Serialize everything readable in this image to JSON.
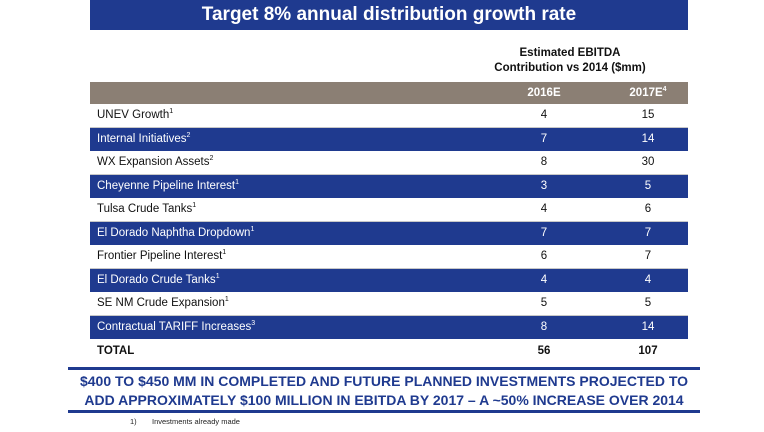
{
  "title": "Target 8% annual distribution growth rate",
  "column_caption_line1": "Estimated EBITDA",
  "column_caption_line2": "Contribution vs 2014 ($mm)",
  "table": {
    "headers": {
      "name": "",
      "col1": "2016E",
      "col2": "2017E",
      "col2_sup": "4"
    },
    "rows": [
      {
        "name": "UNEV Growth",
        "sup": "1",
        "v1": "4",
        "v2": "15"
      },
      {
        "name": "Internal Initiatives",
        "sup": "2",
        "v1": "7",
        "v2": "14"
      },
      {
        "name": "WX Expansion Assets",
        "sup": "2",
        "v1": "8",
        "v2": "30"
      },
      {
        "name": "Cheyenne Pipeline Interest",
        "sup": "1",
        "v1": "3",
        "v2": "5"
      },
      {
        "name": "Tulsa Crude Tanks",
        "sup": "1",
        "v1": "4",
        "v2": "6"
      },
      {
        "name": "El Dorado Naphtha Dropdown",
        "sup": "1",
        "v1": "7",
        "v2": "7"
      },
      {
        "name": "Frontier Pipeline Interest",
        "sup": "1",
        "v1": "6",
        "v2": "7"
      },
      {
        "name": "El Dorado Crude Tanks",
        "sup": "1",
        "v1": "4",
        "v2": "4"
      },
      {
        "name": "SE NM Crude Expansion",
        "sup": "1",
        "v1": "5",
        "v2": "5"
      },
      {
        "name": "Contractual TARIFF Increases",
        "sup": "3",
        "v1": "8",
        "v2": "14"
      }
    ],
    "total": {
      "name": "TOTAL",
      "v1": "56",
      "v2": "107"
    }
  },
  "bottom_line1": "$400 TO $450 MM IN COMPLETED AND FUTURE PLANNED INVESTMENTS PROJECTED TO",
  "bottom_line2": "ADD APPROXIMATELY $100 MILLION IN EBITDA BY 2017 – A ~50% INCREASE OVER 2014",
  "footnotes": [
    {
      "num": "1)",
      "text": "Investments already made"
    }
  ],
  "colors": {
    "accent": "#1f3a8f",
    "header_bg": "#8b7f74"
  }
}
